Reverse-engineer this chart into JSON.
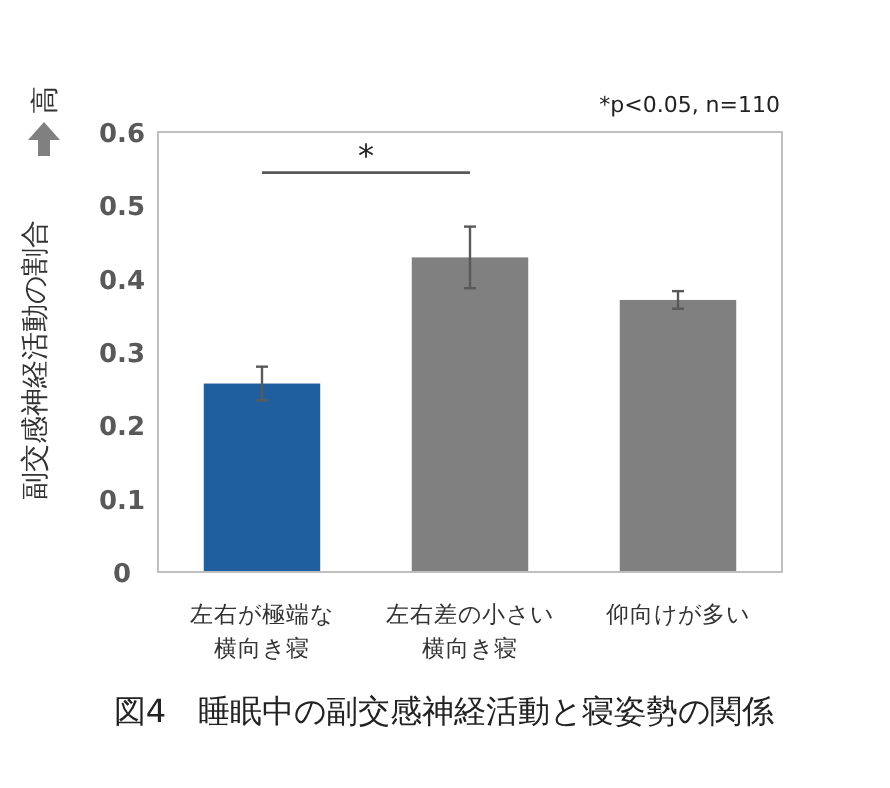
{
  "chart_data": {
    "type": "bar",
    "title": "図4　睡眠中の副交感神経活動と寝姿勢の関係",
    "ylabel": "副交感神経活動の割合",
    "categories": [
      "左右が極端な横向き寝",
      "左右差の小さい横向き寝",
      "仰向けが多い"
    ],
    "values": [
      0.257,
      0.429,
      0.371
    ],
    "errors": [
      0.023,
      0.042,
      0.012
    ],
    "colors": [
      "#1f5f9e",
      "#808080",
      "#808080"
    ],
    "ylim": [
      0,
      0.6
    ],
    "yticks": [
      0,
      0.1,
      0.2,
      0.3,
      0.4,
      0.5,
      0.6
    ],
    "grid": false,
    "annotations": [
      "*p<0.05, n=110",
      "*",
      "高"
    ]
  }
}
